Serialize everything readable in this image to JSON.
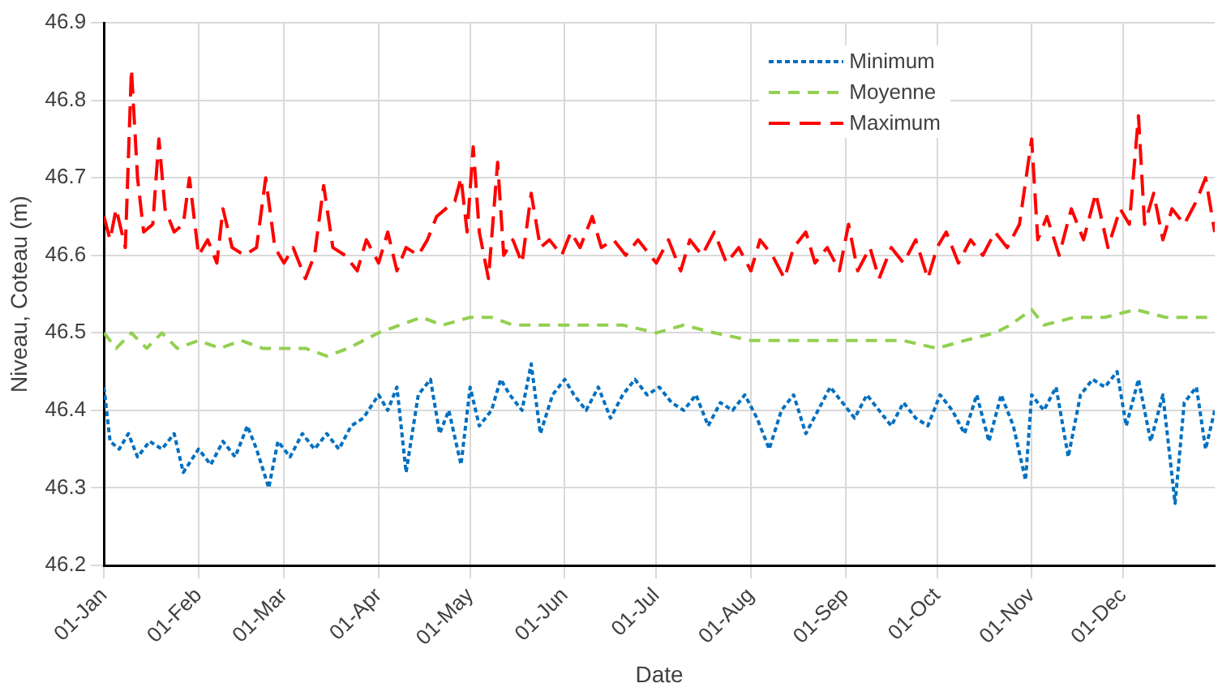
{
  "chart_data": {
    "type": "line",
    "xlabel": "Date",
    "ylabel": "Niveau, Coteau (m)",
    "xlim": [
      "--01-01",
      "--12-31"
    ],
    "xticks": [
      {
        "value": "--01-01",
        "label": "01-Jan"
      },
      {
        "value": "--02-01",
        "label": "01-Feb"
      },
      {
        "value": "--03-01",
        "label": "01-Mar"
      },
      {
        "value": "--04-01",
        "label": "01-Apr"
      },
      {
        "value": "--05-01",
        "label": "01-May"
      },
      {
        "value": "--06-01",
        "label": "01-Jun"
      },
      {
        "value": "--07-01",
        "label": "01-Jul"
      },
      {
        "value": "--08-01",
        "label": "01-Aug"
      },
      {
        "value": "--09-01",
        "label": "01-Sep"
      },
      {
        "value": "--10-01",
        "label": "01-Oct"
      },
      {
        "value": "--11-01",
        "label": "01-Nov"
      },
      {
        "value": "--12-01",
        "label": "01-Dec"
      }
    ],
    "ylim": [
      46.2,
      46.9
    ],
    "yticks": [
      46.2,
      46.3,
      46.4,
      46.5,
      46.6,
      46.7,
      46.8,
      46.9
    ],
    "grid": true,
    "legend": "top right",
    "marker": "none",
    "series": [
      {
        "name": "Minimum",
        "color": "#0070c0",
        "line_style": "dashed",
        "x": [
          "--01-01",
          "--01-03",
          "--01-06",
          "--01-09",
          "--01-12",
          "--01-16",
          "--01-20",
          "--01-24",
          "--01-27",
          "--02-01",
          "--02-05",
          "--02-09",
          "--02-13",
          "--02-17",
          "--02-20",
          "--02-24",
          "--02-27",
          "--03-03",
          "--03-07",
          "--03-11",
          "--03-15",
          "--03-19",
          "--03-23",
          "--03-27",
          "--04-01",
          "--04-04",
          "--04-07",
          "--04-10",
          "--04-14",
          "--04-18",
          "--04-21",
          "--04-24",
          "--04-28",
          "--05-01",
          "--05-04",
          "--05-08",
          "--05-11",
          "--05-14",
          "--05-18",
          "--05-21",
          "--05-24",
          "--05-28",
          "--06-01",
          "--06-04",
          "--06-08",
          "--06-12",
          "--06-16",
          "--06-20",
          "--06-24",
          "--06-28",
          "--07-02",
          "--07-06",
          "--07-10",
          "--07-14",
          "--07-18",
          "--07-22",
          "--07-26",
          "--07-30",
          "--08-03",
          "--08-07",
          "--08-11",
          "--08-15",
          "--08-19",
          "--08-23",
          "--08-27",
          "--08-31",
          "--09-04",
          "--09-08",
          "--09-12",
          "--09-16",
          "--09-20",
          "--09-24",
          "--09-28",
          "--10-02",
          "--10-06",
          "--10-10",
          "--10-14",
          "--10-18",
          "--10-22",
          "--10-26",
          "--10-30",
          "--11-01",
          "--11-05",
          "--11-09",
          "--11-13",
          "--11-17",
          "--11-21",
          "--11-25",
          "--11-29",
          "--12-02",
          "--12-06",
          "--12-10",
          "--12-14",
          "--12-18",
          "--12-21",
          "--12-25",
          "--12-28",
          "--12-31"
        ],
        "values": [
          46.43,
          46.36,
          46.35,
          46.37,
          46.34,
          46.36,
          46.35,
          46.37,
          46.32,
          46.35,
          46.33,
          46.36,
          46.34,
          46.38,
          46.35,
          46.3,
          46.36,
          46.34,
          46.37,
          46.35,
          46.37,
          46.35,
          46.38,
          46.39,
          46.42,
          46.4,
          46.43,
          46.32,
          46.42,
          46.44,
          46.37,
          46.4,
          46.33,
          46.43,
          46.38,
          46.4,
          46.44,
          46.42,
          46.4,
          46.46,
          46.37,
          46.42,
          46.44,
          46.42,
          46.4,
          46.43,
          46.39,
          46.42,
          46.44,
          46.42,
          46.43,
          46.41,
          46.4,
          46.42,
          46.38,
          46.41,
          46.4,
          46.42,
          46.39,
          46.35,
          46.4,
          46.42,
          46.37,
          46.4,
          46.43,
          46.41,
          46.39,
          46.42,
          46.4,
          46.38,
          46.41,
          46.39,
          46.38,
          46.42,
          46.4,
          46.37,
          46.42,
          46.36,
          46.42,
          46.38,
          46.31,
          46.42,
          46.4,
          46.43,
          46.34,
          46.42,
          46.44,
          46.43,
          46.45,
          46.38,
          46.44,
          46.36,
          46.42,
          46.28,
          46.41,
          46.43,
          46.35,
          46.4
        ]
      },
      {
        "name": "Moyenne",
        "color": "#92d050",
        "line_style": "dashed",
        "x": [
          "--01-01",
          "--01-05",
          "--01-10",
          "--01-15",
          "--01-20",
          "--01-25",
          "--02-01",
          "--02-08",
          "--02-15",
          "--02-22",
          "--03-01",
          "--03-08",
          "--03-15",
          "--03-22",
          "--04-01",
          "--04-08",
          "--04-15",
          "--04-22",
          "--05-01",
          "--05-08",
          "--05-15",
          "--05-22",
          "--06-01",
          "--06-10",
          "--06-20",
          "--07-01",
          "--07-10",
          "--07-20",
          "--08-01",
          "--08-10",
          "--08-20",
          "--09-01",
          "--09-10",
          "--09-20",
          "--10-01",
          "--10-10",
          "--10-20",
          "--10-25",
          "--11-01",
          "--11-05",
          "--11-15",
          "--11-25",
          "--12-05",
          "--12-15",
          "--12-25",
          "--12-31"
        ],
        "values": [
          46.5,
          46.48,
          46.5,
          46.48,
          46.5,
          46.48,
          46.49,
          46.48,
          46.49,
          46.48,
          46.48,
          46.48,
          46.47,
          46.48,
          46.5,
          46.51,
          46.52,
          46.51,
          46.52,
          46.52,
          46.51,
          46.51,
          46.51,
          46.51,
          46.51,
          46.5,
          46.51,
          46.5,
          46.49,
          46.49,
          46.49,
          46.49,
          46.49,
          46.49,
          46.48,
          46.49,
          46.5,
          46.51,
          46.53,
          46.51,
          46.52,
          46.52,
          46.53,
          46.52,
          46.52,
          46.52
        ]
      },
      {
        "name": "Maximum",
        "color": "#ff0000",
        "line_style": "dashed",
        "x": [
          "--01-01",
          "--01-03",
          "--01-05",
          "--01-08",
          "--01-10",
          "--01-12",
          "--01-14",
          "--01-17",
          "--01-19",
          "--01-21",
          "--01-24",
          "--01-27",
          "--01-29",
          "--02-01",
          "--02-04",
          "--02-07",
          "--02-09",
          "--02-12",
          "--02-16",
          "--02-20",
          "--02-23",
          "--02-26",
          "--03-01",
          "--03-04",
          "--03-08",
          "--03-11",
          "--03-14",
          "--03-17",
          "--03-21",
          "--03-25",
          "--03-28",
          "--04-01",
          "--04-04",
          "--04-07",
          "--04-10",
          "--04-14",
          "--04-17",
          "--04-20",
          "--04-23",
          "--04-26",
          "--04-28",
          "--04-30",
          "--05-02",
          "--05-04",
          "--05-07",
          "--05-10",
          "--05-12",
          "--05-15",
          "--05-18",
          "--05-21",
          "--05-24",
          "--05-27",
          "--05-31",
          "--06-03",
          "--06-06",
          "--06-10",
          "--06-13",
          "--06-17",
          "--06-21",
          "--06-25",
          "--07-01",
          "--07-05",
          "--07-09",
          "--07-12",
          "--07-16",
          "--07-20",
          "--07-24",
          "--07-28",
          "--08-01",
          "--08-04",
          "--08-08",
          "--08-12",
          "--08-15",
          "--08-19",
          "--08-22",
          "--08-26",
          "--08-30",
          "--09-02",
          "--09-05",
          "--09-09",
          "--09-12",
          "--09-16",
          "--09-20",
          "--09-24",
          "--09-28",
          "--10-01",
          "--10-04",
          "--10-08",
          "--10-12",
          "--10-16",
          "--10-20",
          "--10-24",
          "--10-28",
          "--11-01",
          "--11-03",
          "--11-06",
          "--11-10",
          "--11-14",
          "--11-18",
          "--11-22",
          "--11-26",
          "--11-30",
          "--12-03",
          "--12-06",
          "--12-08",
          "--12-11",
          "--12-14",
          "--12-17",
          "--12-21",
          "--12-25",
          "--12-28",
          "--12-31"
        ],
        "values": [
          46.65,
          46.62,
          46.66,
          46.61,
          46.84,
          46.7,
          46.63,
          46.64,
          46.75,
          46.66,
          46.63,
          46.64,
          46.7,
          46.6,
          46.62,
          46.59,
          46.66,
          46.61,
          46.6,
          46.61,
          46.7,
          46.61,
          46.59,
          46.61,
          46.57,
          46.6,
          46.69,
          46.61,
          46.6,
          46.58,
          46.62,
          46.59,
          46.63,
          46.58,
          46.61,
          46.6,
          46.62,
          46.65,
          46.66,
          46.67,
          46.7,
          46.63,
          46.74,
          46.63,
          46.57,
          46.72,
          46.6,
          46.62,
          46.59,
          46.68,
          46.61,
          46.62,
          46.6,
          46.63,
          46.61,
          46.65,
          46.61,
          46.62,
          46.6,
          46.62,
          46.59,
          46.62,
          46.58,
          46.62,
          46.6,
          46.63,
          46.59,
          46.61,
          46.58,
          46.62,
          46.6,
          46.57,
          46.61,
          46.63,
          46.59,
          46.61,
          46.58,
          46.64,
          46.58,
          46.61,
          46.57,
          46.61,
          46.59,
          46.62,
          46.57,
          46.61,
          46.63,
          46.59,
          46.62,
          46.6,
          46.63,
          46.61,
          46.64,
          46.75,
          46.62,
          46.65,
          46.6,
          46.66,
          46.62,
          46.68,
          46.61,
          46.66,
          46.64,
          46.78,
          46.64,
          46.68,
          46.62,
          46.66,
          46.64,
          46.67,
          46.7,
          46.63
        ]
      }
    ]
  }
}
